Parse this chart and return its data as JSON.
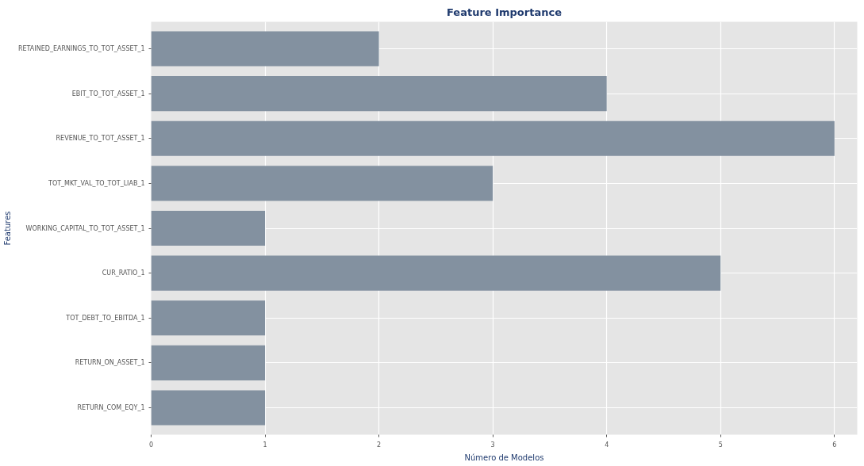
{
  "chart_data": {
    "type": "bar",
    "orientation": "horizontal",
    "title": "Feature Importance",
    "xlabel": "Número de Modelos",
    "ylabel": "Features",
    "categories": [
      "RETAINED_EARNINGS_TO_TOT_ASSET_1",
      "EBIT_TO_TOT_ASSET_1",
      "REVENUE_TO_TOT_ASSET_1",
      "TOT_MKT_VAL_TO_TOT_LIAB_1",
      "WORKING_CAPITAL_TO_TOT_ASSET_1",
      "CUR_RATIO_1",
      "TOT_DEBT_TO_EBITDA_1",
      "RETURN_ON_ASSET_1",
      "RETURN_COM_EQY_1"
    ],
    "values": [
      2,
      4,
      6,
      3,
      1,
      5,
      1,
      1,
      1
    ],
    "color": "#8391a0",
    "xlim": [
      0,
      6.2
    ],
    "xticks": [
      0,
      1,
      2,
      3,
      4,
      5,
      6
    ],
    "grid": true
  }
}
